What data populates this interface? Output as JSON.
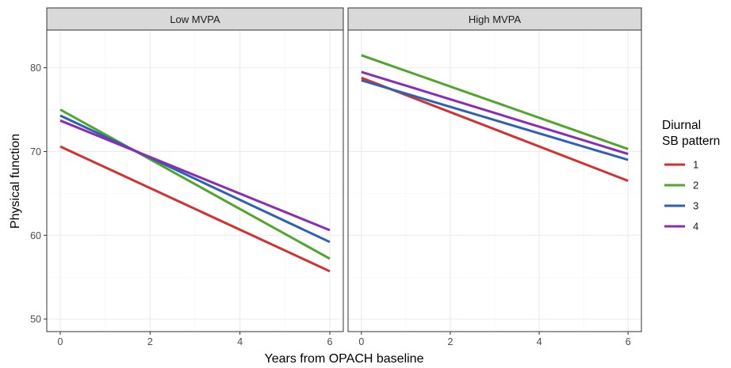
{
  "chart_data": {
    "type": "line",
    "xlabel": "Years from OPACH baseline",
    "ylabel": "Physical function",
    "x_ticks": [
      0,
      2,
      4,
      6
    ],
    "y_ticks": [
      50,
      60,
      70,
      80
    ],
    "xlim": [
      -0.3,
      6.3
    ],
    "ylim": [
      48.5,
      84.5
    ],
    "grid": true,
    "legend": {
      "title_lines": [
        "Diurnal",
        "SB pattern"
      ],
      "position": "right"
    },
    "colors": {
      "1": "#d62f2f",
      "2": "#4ea62b",
      "3": "#2b62b3",
      "4": "#8a2cb5"
    },
    "series_names": [
      "1",
      "2",
      "3",
      "4"
    ],
    "panels": [
      {
        "title": "Low MVPA",
        "series": [
          {
            "name": "1",
            "x": [
              0,
              6
            ],
            "y": [
              70.6,
              55.7
            ]
          },
          {
            "name": "2",
            "x": [
              0,
              6
            ],
            "y": [
              75.0,
              57.2
            ]
          },
          {
            "name": "3",
            "x": [
              0,
              6
            ],
            "y": [
              74.3,
              59.2
            ]
          },
          {
            "name": "4",
            "x": [
              0,
              6
            ],
            "y": [
              73.7,
              60.6
            ]
          }
        ]
      },
      {
        "title": "High MVPA",
        "series": [
          {
            "name": "1",
            "x": [
              0,
              6
            ],
            "y": [
              78.8,
              66.5
            ]
          },
          {
            "name": "2",
            "x": [
              0,
              6
            ],
            "y": [
              81.5,
              70.3
            ]
          },
          {
            "name": "3",
            "x": [
              0,
              6
            ],
            "y": [
              78.5,
              69.0
            ]
          },
          {
            "name": "4",
            "x": [
              0,
              6
            ],
            "y": [
              79.5,
              69.7
            ]
          }
        ]
      }
    ]
  }
}
